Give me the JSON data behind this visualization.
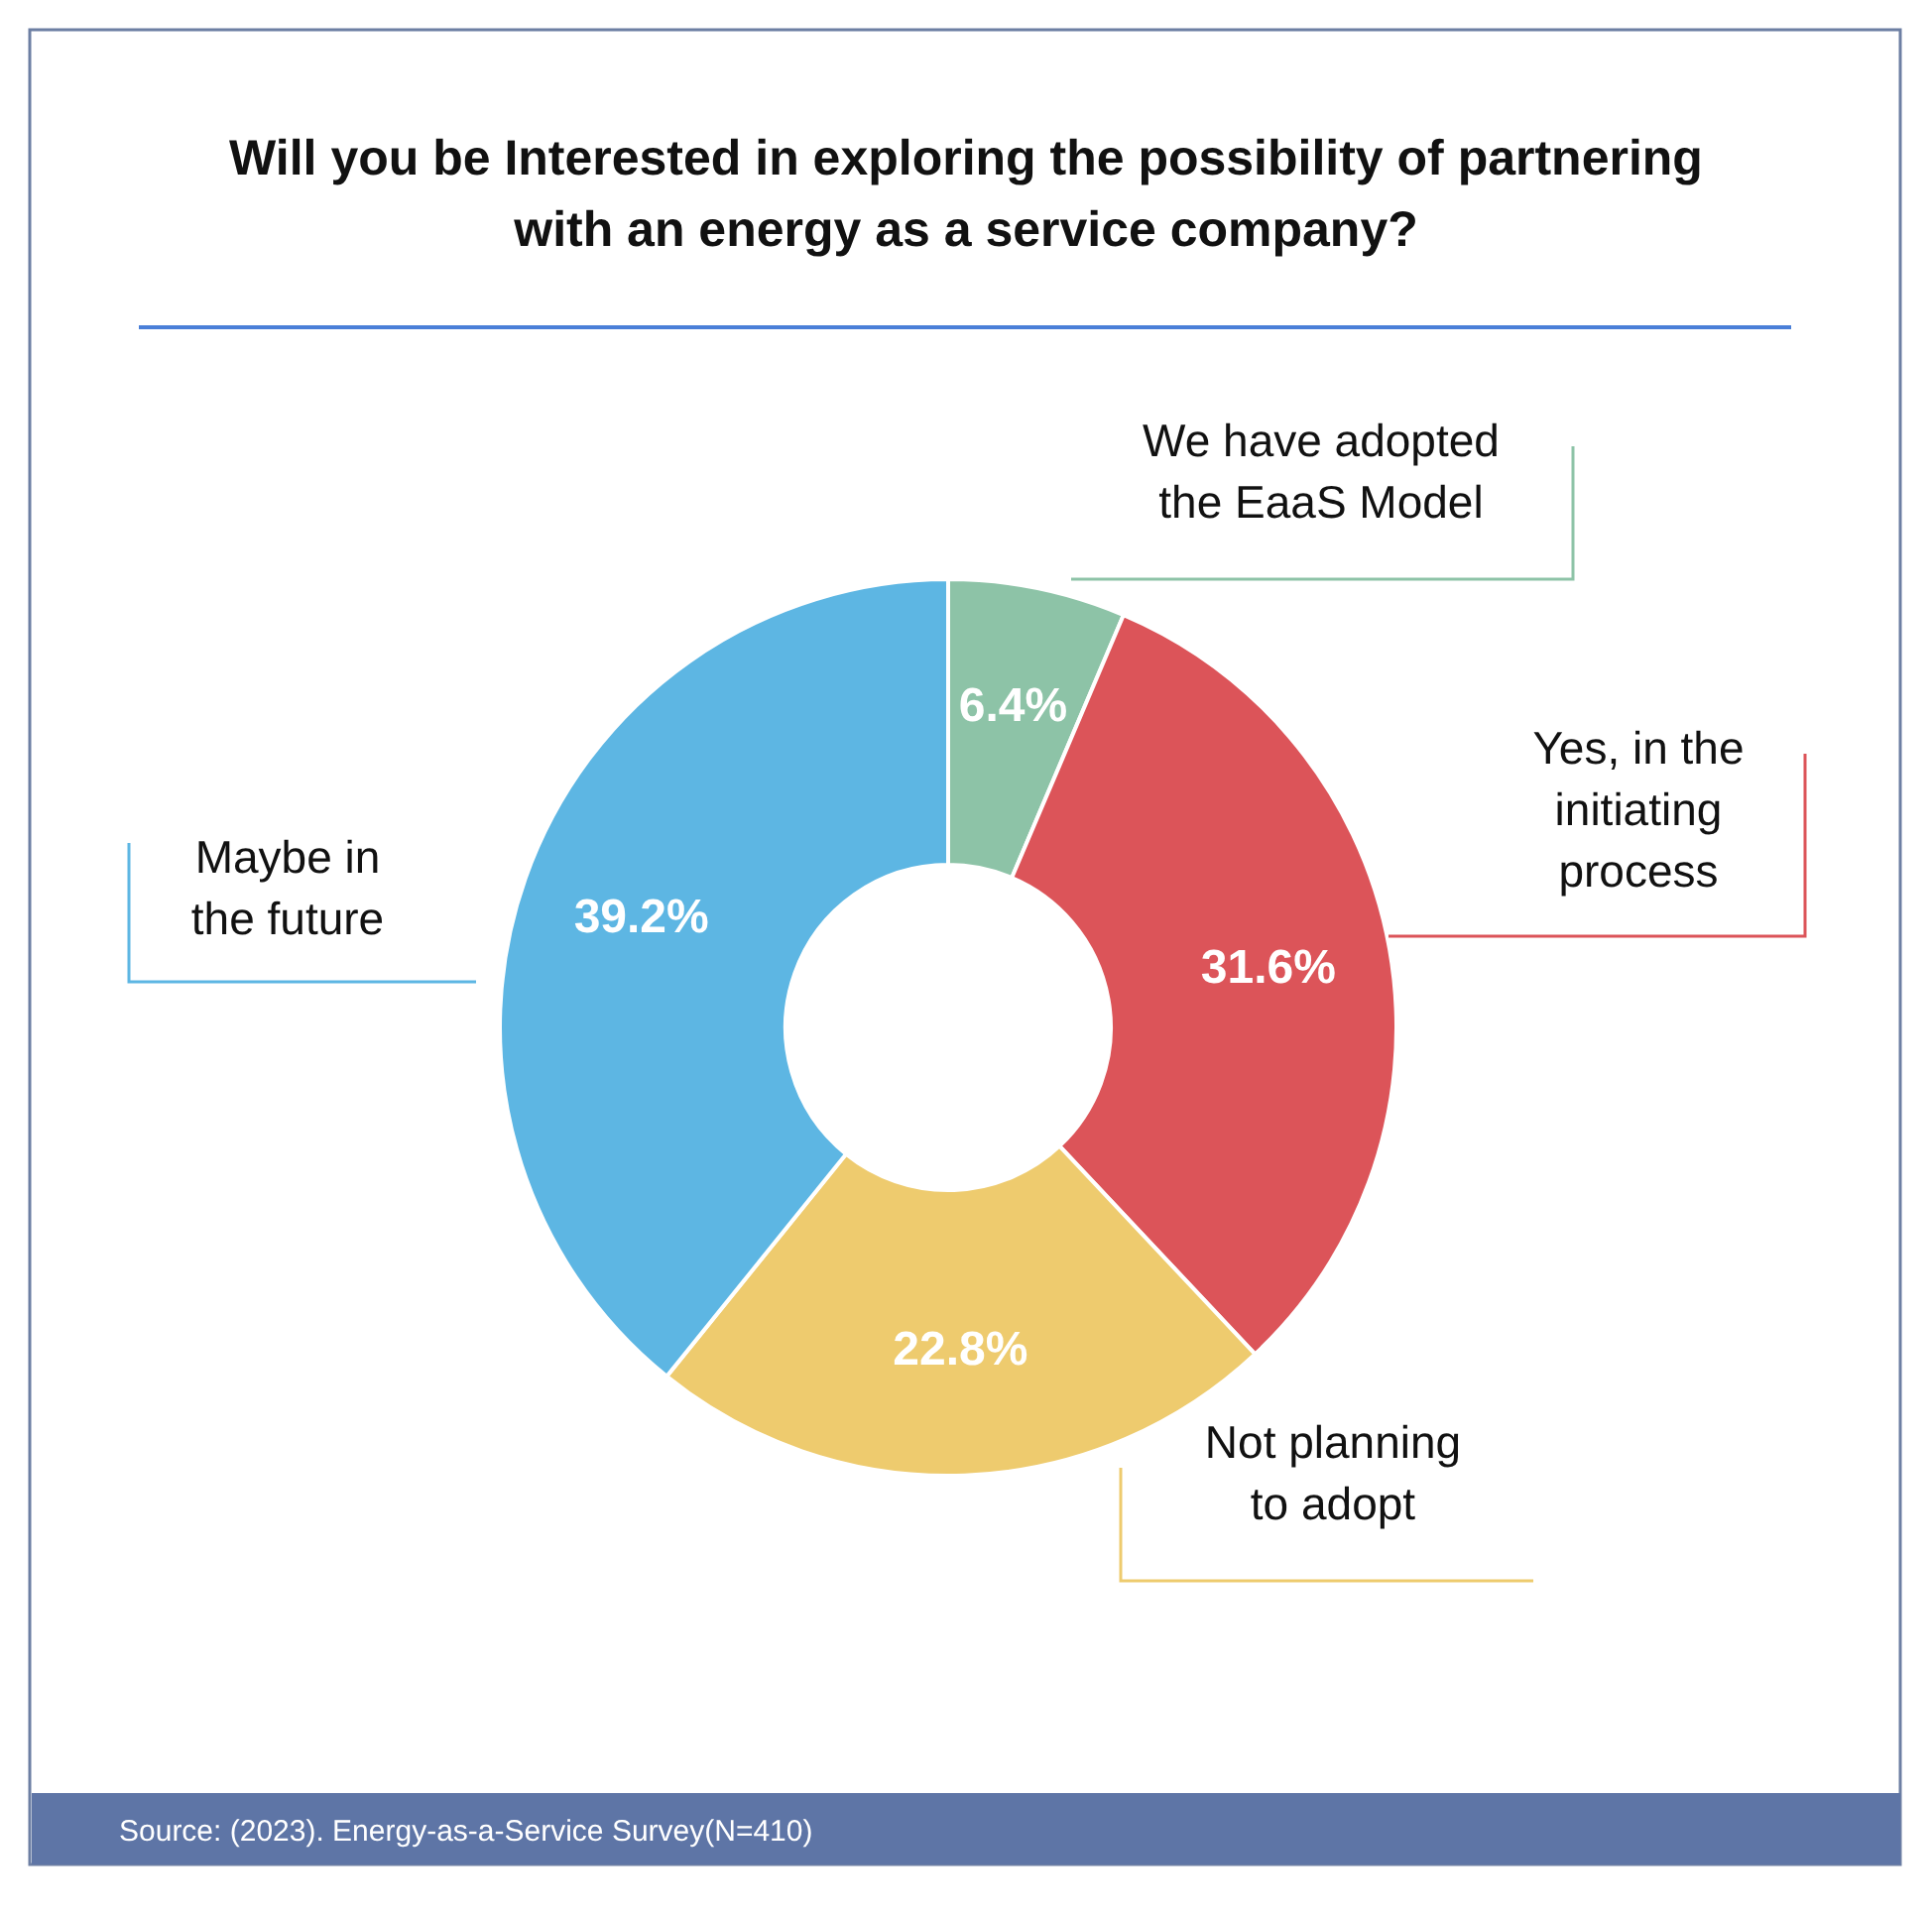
{
  "chart_data": {
    "type": "donut",
    "title": "Will you be Interested in exploring the possibility of partnering\nwith an energy as a service company?",
    "categories": [
      "We have adopted\nthe EaaS Model",
      "Yes, in the\ninitiating\nprocess",
      "Not planning\nto adopt",
      "Maybe in\nthe future"
    ],
    "values": [
      6.4,
      31.6,
      22.8,
      39.2
    ],
    "colors": [
      "#8dc3a7",
      "#dc5459",
      "#eecb6e",
      "#5db6e3"
    ],
    "value_labels": [
      "6.4%",
      "31.6%",
      "22.8%",
      "39.2%"
    ],
    "annotations": [
      "Source: (2023). Energy-as-a-Service Survey(N=410)"
    ]
  }
}
